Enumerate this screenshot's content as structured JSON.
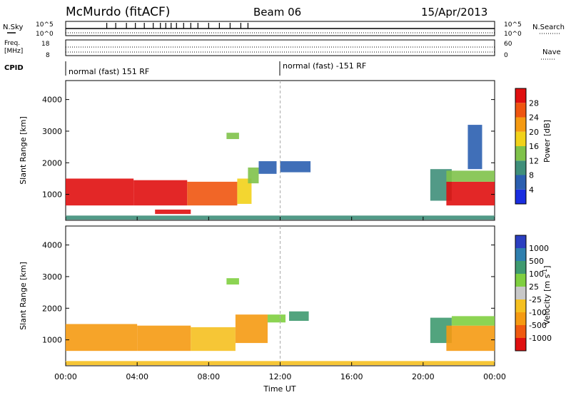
{
  "header": {
    "station": "McMurdo (fitACF)",
    "beam": "Beam 06",
    "date": "15/Apr/2013"
  },
  "aux": {
    "nsky_label": "N.Sky",
    "nsearch_label": "N.Search",
    "freq_label_line1": "Freq.",
    "freq_label_line2": "[MHz]",
    "nave_label": "Nave",
    "cpid_label": "CPID",
    "left_ticks_top": [
      "10^5",
      "10^0"
    ],
    "right_ticks_top": [
      "10^5",
      "10^0"
    ],
    "left_ticks_freq": [
      "18",
      "8"
    ],
    "right_ticks_nave": [
      "60",
      "0"
    ],
    "cpid_segments": [
      {
        "label": "normal (fast) 151 RF",
        "start": "00:00"
      },
      {
        "label": "normal (fast) -151 RF",
        "start": "12:00"
      }
    ]
  },
  "chart_data": [
    {
      "type": "heatmap",
      "name": "power",
      "ylabel": "Slant Range [km]",
      "yticks": [
        "1000",
        "2000",
        "3000",
        "4000"
      ],
      "ylim": [
        180,
        4600
      ],
      "xlim": [
        0,
        24
      ],
      "colorbar_label": "Power [dB]",
      "colorbar_ticks": [
        "4",
        "8",
        "12",
        "16",
        "20",
        "24",
        "28"
      ],
      "colorbar_colors": [
        "#1a2ee0",
        "#2b5fb0",
        "#3f8f7a",
        "#7fc24a",
        "#f2d21a",
        "#f59a12",
        "#ef5510",
        "#e01010"
      ],
      "cells": [
        {
          "t0": 0.0,
          "t1": 3.8,
          "r0": 650,
          "r1": 1500,
          "level": 7
        },
        {
          "t0": 3.8,
          "t1": 6.8,
          "r0": 650,
          "r1": 1450,
          "level": 7
        },
        {
          "t0": 6.8,
          "t1": 9.6,
          "r0": 650,
          "r1": 1400,
          "level": 6
        },
        {
          "t0": 9.6,
          "t1": 10.4,
          "r0": 700,
          "r1": 1500,
          "level": 4
        },
        {
          "t0": 10.2,
          "t1": 10.8,
          "r0": 1350,
          "r1": 1850,
          "level": 3
        },
        {
          "t0": 10.8,
          "t1": 11.8,
          "r0": 1650,
          "r1": 2050,
          "level": 1
        },
        {
          "t0": 5.0,
          "t1": 7.0,
          "r0": 380,
          "r1": 520,
          "level": 7
        },
        {
          "t0": 9.0,
          "t1": 9.7,
          "r0": 2750,
          "r1": 2950,
          "level": 3
        },
        {
          "t0": 12.0,
          "t1": 13.7,
          "r0": 1700,
          "r1": 2050,
          "level": 1
        },
        {
          "t0": 20.4,
          "t1": 21.6,
          "r0": 800,
          "r1": 1800,
          "level": 2
        },
        {
          "t0": 21.3,
          "t1": 24.0,
          "r0": 650,
          "r1": 1400,
          "level": 7
        },
        {
          "t0": 21.3,
          "t1": 24.0,
          "r0": 1400,
          "r1": 1750,
          "level": 3
        },
        {
          "t0": 22.5,
          "t1": 23.3,
          "r0": 1800,
          "r1": 3200,
          "level": 1
        },
        {
          "t0": 0.0,
          "t1": 24.0,
          "r0": 200,
          "r1": 330,
          "level": 2
        }
      ]
    },
    {
      "type": "heatmap",
      "name": "velocity",
      "ylabel": "Slant Range [km]",
      "yticks": [
        "1000",
        "2000",
        "3000",
        "4000"
      ],
      "ylim": [
        180,
        4600
      ],
      "xlim": [
        0,
        24
      ],
      "xlabel": "Time UT",
      "xticks": [
        "00:00",
        "04:00",
        "08:00",
        "12:00",
        "16:00",
        "20:00",
        "00:00"
      ],
      "colorbar_label": "Velocity [m s^-1]",
      "colorbar_ticks": [
        "1000",
        "500",
        "100",
        "25",
        "-25",
        "-100",
        "-500",
        "-1000"
      ],
      "colorbar_colors": [
        "#2b3fc0",
        "#2f7fae",
        "#3f9a70",
        "#7fcf40",
        "#c8c8c8",
        "#f5c020",
        "#f59a12",
        "#ef5a10",
        "#e01010"
      ],
      "cells": [
        {
          "t0": 0.0,
          "t1": 4.0,
          "r0": 650,
          "r1": 1500,
          "level": 6
        },
        {
          "t0": 4.0,
          "t1": 7.0,
          "r0": 650,
          "r1": 1450,
          "level": 6
        },
        {
          "t0": 7.0,
          "t1": 9.5,
          "r0": 650,
          "r1": 1400,
          "level": 5
        },
        {
          "t0": 9.5,
          "t1": 11.3,
          "r0": 900,
          "r1": 1800,
          "level": 6
        },
        {
          "t0": 11.3,
          "t1": 12.3,
          "r0": 1550,
          "r1": 1800,
          "level": 3
        },
        {
          "t0": 12.5,
          "t1": 13.6,
          "r0": 1600,
          "r1": 1900,
          "level": 2
        },
        {
          "t0": 9.0,
          "t1": 9.7,
          "r0": 2750,
          "r1": 2950,
          "level": 3
        },
        {
          "t0": 20.4,
          "t1": 21.6,
          "r0": 900,
          "r1": 1700,
          "level": 2
        },
        {
          "t0": 21.3,
          "t1": 24.0,
          "r0": 650,
          "r1": 1450,
          "level": 6
        },
        {
          "t0": 21.6,
          "t1": 24.0,
          "r0": 1450,
          "r1": 1750,
          "level": 3
        },
        {
          "t0": 0.0,
          "t1": 24.0,
          "r0": 200,
          "r1": 330,
          "level": 5
        }
      ]
    }
  ]
}
